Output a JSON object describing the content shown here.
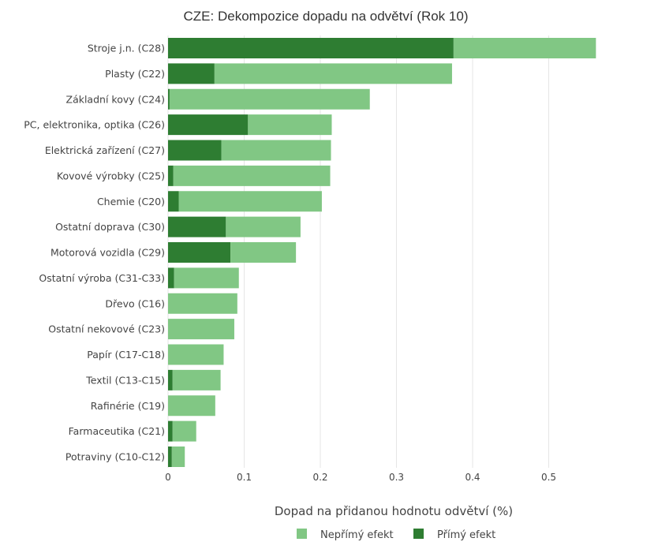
{
  "chart_data": {
    "type": "bar",
    "orientation": "horizontal",
    "stacked": true,
    "title": "CZE: Dekompozice dopadu na odvětví (Rok 10)",
    "xlabel": "Dopad na přidanou hodnotu odvětví (%)",
    "ylabel": "",
    "xlim": [
      0,
      0.58
    ],
    "xticks": [
      "0",
      "0.1",
      "0.2",
      "0.3",
      "0.4",
      "0.5"
    ],
    "xtick_values": [
      0,
      0.1,
      0.2,
      0.3,
      0.4,
      0.5
    ],
    "grid": true,
    "legend_position": "bottom",
    "categories": [
      "Stroje j.n. (C28)",
      "Plasty (C22)",
      "Základní kovy (C24)",
      "PC, elektronika, optika (C26)",
      "Elektrická zařízení (C27)",
      "Kovové výrobky (C25)",
      "Chemie (C20)",
      "Ostatní doprava (C30)",
      "Motorová vozidla (C29)",
      "Ostatní výroba (C31-C33)",
      "Dřevo (C16)",
      "Ostatní nekovové (C23)",
      "Papír (C17-C18)",
      "Textil (C13-C15)",
      "Rafinérie (C19)",
      "Farmaceutika (C21)",
      "Potraviny (C10-C12)"
    ],
    "series": [
      {
        "name": "Přímý efekt",
        "color": "#2e7d32",
        "values": [
          0.375,
          0.061,
          0.002,
          0.105,
          0.07,
          0.007,
          0.014,
          0.076,
          0.082,
          0.008,
          0.0,
          0.0,
          0.0,
          0.006,
          0.0,
          0.006,
          0.005
        ]
      },
      {
        "name": "Nepřímý efekt",
        "color": "#81c784",
        "values": [
          0.187,
          0.312,
          0.263,
          0.11,
          0.144,
          0.206,
          0.188,
          0.098,
          0.086,
          0.085,
          0.091,
          0.087,
          0.073,
          0.063,
          0.062,
          0.031,
          0.017
        ]
      }
    ],
    "legend": [
      "Nepřímý efekt",
      "Přímý efekt"
    ]
  }
}
